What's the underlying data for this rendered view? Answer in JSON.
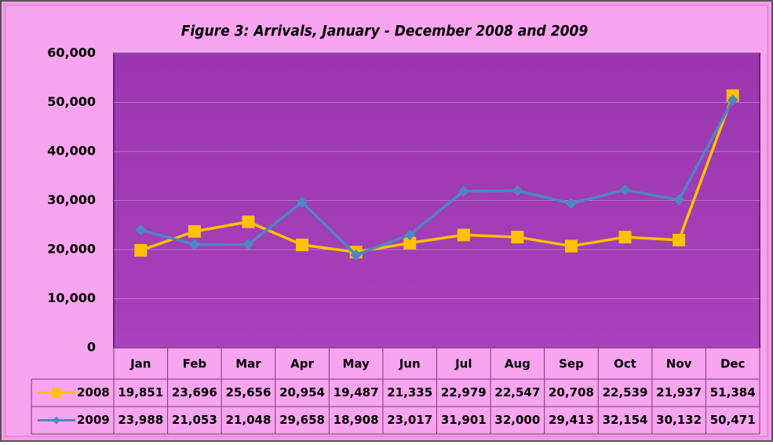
{
  "chart_data": {
    "type": "line",
    "title": "Figure 3: Arrivals, January - December 2008 and 2009",
    "categories": [
      "Jan",
      "Feb",
      "Mar",
      "Apr",
      "May",
      "Jun",
      "Jul",
      "Aug",
      "Sep",
      "Oct",
      "Nov",
      "Dec"
    ],
    "series": [
      {
        "name": "2008",
        "color": "#ffc000",
        "marker": "square",
        "values": [
          19851,
          23696,
          25656,
          20954,
          19487,
          21335,
          22979,
          22547,
          20708,
          22539,
          21937,
          51384
        ],
        "value_labels": [
          "19,851",
          "23,696",
          "25,656",
          "20,954",
          "19,487",
          "21,335",
          "22,979",
          "22,547",
          "20,708",
          "22,539",
          "21,937",
          "51,384"
        ]
      },
      {
        "name": "2009",
        "color": "#4f86c0",
        "marker": "diamond",
        "values": [
          23988,
          21053,
          21048,
          29658,
          18908,
          23017,
          31901,
          32000,
          29413,
          32154,
          30132,
          50471
        ],
        "value_labels": [
          "23,988",
          "21,053",
          "21,048",
          "29,658",
          "18,908",
          "23,017",
          "31,901",
          "32,000",
          "29,413",
          "32,154",
          "30,132",
          "50,471"
        ]
      }
    ],
    "ylim": [
      0,
      60000
    ],
    "yticks": [
      0,
      {
        "value": 10000,
        "label": "10,000"
      },
      {
        "value": 20000,
        "label": "20,000"
      },
      {
        "value": 30000,
        "label": "30,000"
      },
      {
        "value": 40000,
        "label": "40,000"
      },
      {
        "value": 50000,
        "label": "50,000"
      },
      {
        "value": 60000,
        "label": "60,000"
      }
    ],
    "grid": true
  }
}
